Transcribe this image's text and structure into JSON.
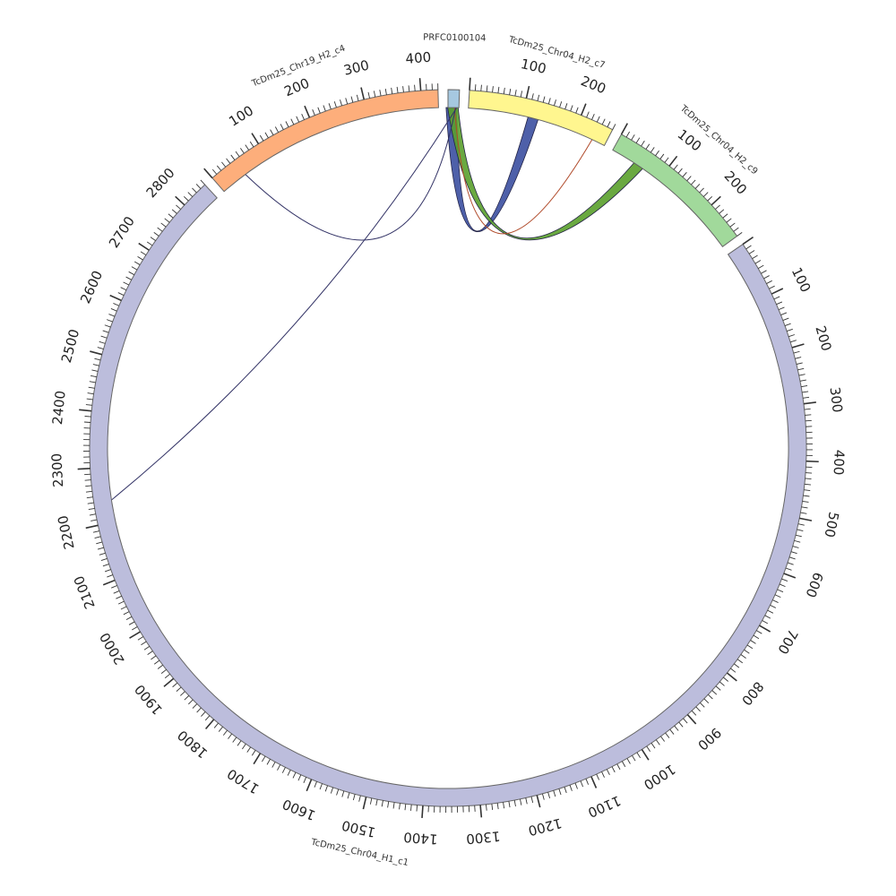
{
  "segments": [
    {
      "name": "PRFC0100104",
      "length": 20,
      "color": "#a6c8e0",
      "tick_step": 0
    },
    {
      "name": "TcDm25_Chr04_H2_c7",
      "length": 260,
      "color": "#fff68f",
      "tick_step": 100
    },
    {
      "name": "TcDm25_Chr04_H2_c9",
      "length": 270,
      "color": "#a1d99b",
      "tick_step": 100
    },
    {
      "name": "TcDm25_Chr04_H1_c1",
      "length": 2850,
      "color": "#bcbddc",
      "tick_step": 100
    },
    {
      "name": "TcDm25_Chr19_H2_c4",
      "length": 430,
      "color": "#fdae7b",
      "tick_step": 100
    }
  ],
  "links": [
    {
      "from": {
        "seg": 0,
        "pos": 6
      },
      "to": {
        "seg": 1,
        "pos": 120
      },
      "color": "#3b4fa0",
      "weight": 5
    },
    {
      "from": {
        "seg": 0,
        "pos": 9
      },
      "to": {
        "seg": 2,
        "pos": 55
      },
      "color": "#5aa02c",
      "weight": 5
    },
    {
      "from": {
        "seg": 0,
        "pos": 12
      },
      "to": {
        "seg": 1,
        "pos": 235
      },
      "color": "#b04a2a",
      "weight": 1
    },
    {
      "from": {
        "seg": 0,
        "pos": 14
      },
      "to": {
        "seg": 4,
        "pos": 50
      },
      "color": "#333366",
      "weight": 1
    },
    {
      "from": {
        "seg": 0,
        "pos": 16
      },
      "to": {
        "seg": 3,
        "pos": 2240
      },
      "color": "#333366",
      "weight": 1
    }
  ]
}
